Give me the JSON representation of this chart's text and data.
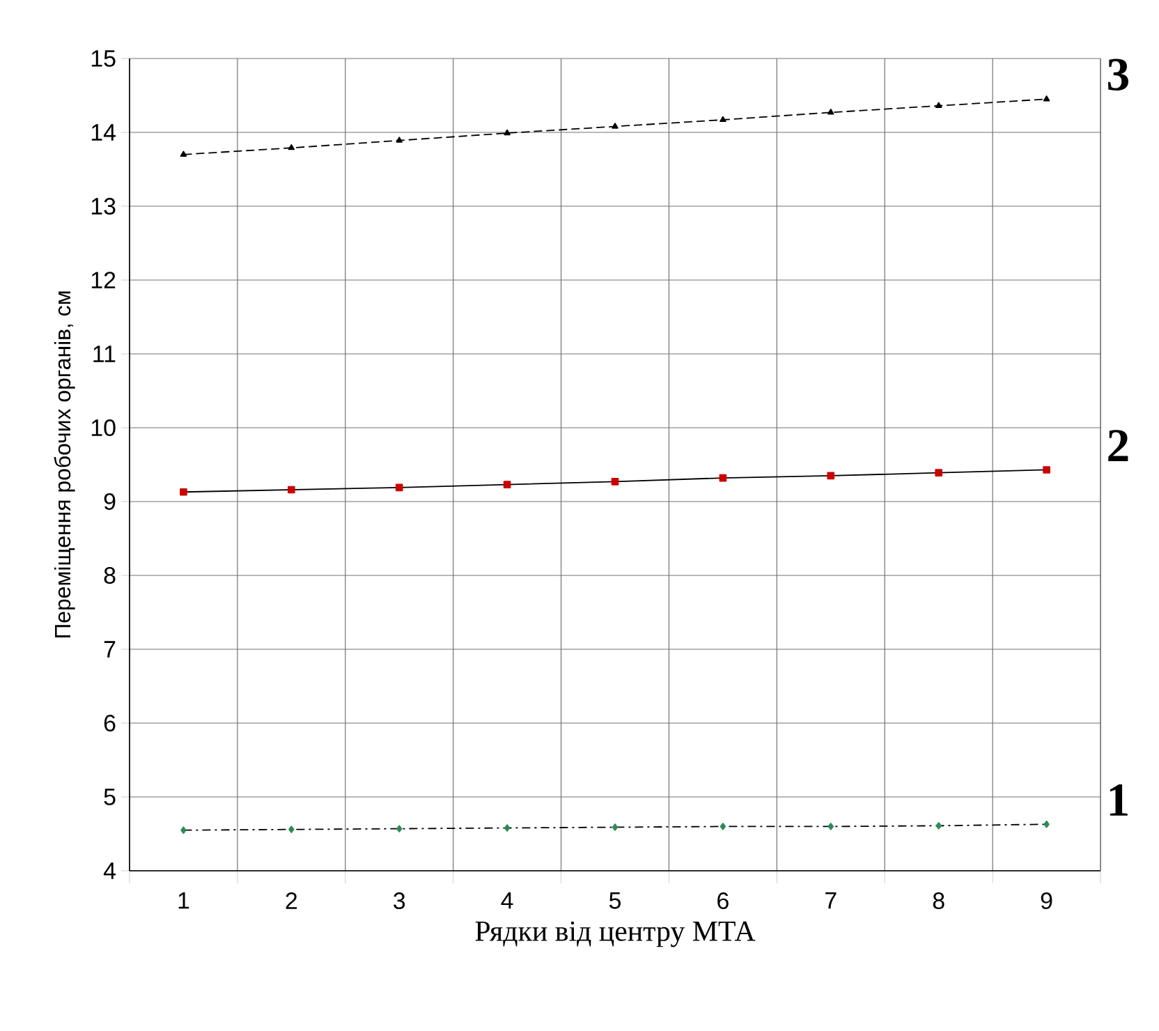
{
  "chart_data": {
    "type": "line",
    "xlabel": "Рядки від центру МТА",
    "ylabel": "Переміщення робочих органів, см",
    "categories": [
      "1",
      "2",
      "3",
      "4",
      "5",
      "6",
      "7",
      "8",
      "9"
    ],
    "ylim": [
      4,
      15
    ],
    "yticks": [
      4,
      5,
      6,
      7,
      8,
      9,
      10,
      11,
      12,
      13,
      14,
      15
    ],
    "grid": true,
    "series": [
      {
        "name": "1",
        "color": "#2e8b57",
        "marker": "diamond",
        "line_style": "dashdot",
        "values": [
          4.55,
          4.56,
          4.57,
          4.58,
          4.59,
          4.6,
          4.6,
          4.61,
          4.63
        ]
      },
      {
        "name": "2",
        "color": "#cc0000",
        "marker": "square",
        "line_style": "solid",
        "values": [
          9.13,
          9.16,
          9.19,
          9.23,
          9.27,
          9.32,
          9.35,
          9.39,
          9.43
        ]
      },
      {
        "name": "3",
        "color": "#000000",
        "marker": "triangle",
        "line_style": "dashed",
        "values": [
          13.7,
          13.79,
          13.89,
          13.99,
          14.08,
          14.17,
          14.27,
          14.36,
          14.45
        ]
      }
    ]
  }
}
